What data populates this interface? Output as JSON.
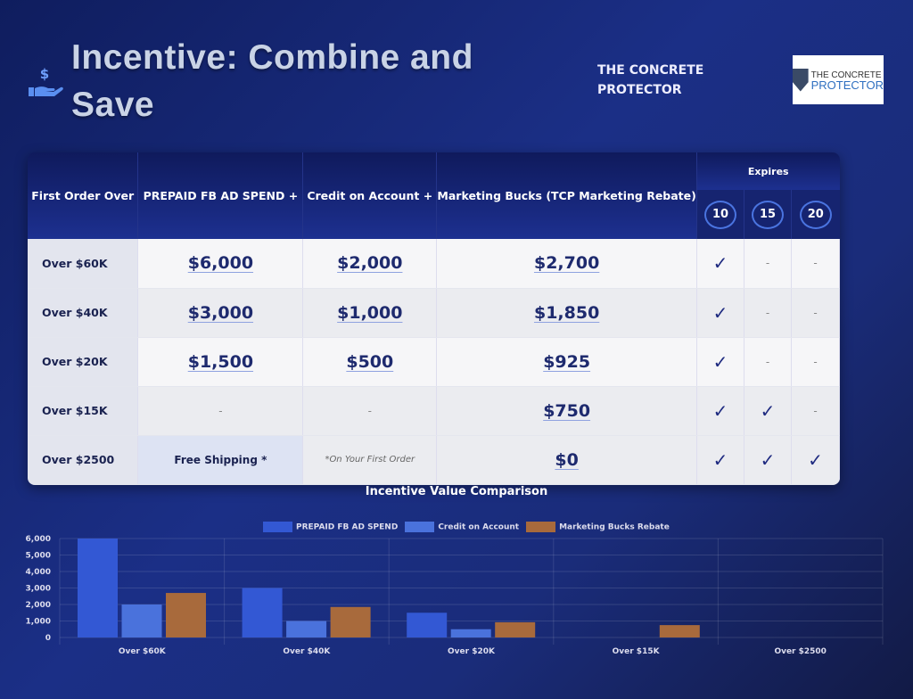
{
  "header": {
    "title_part1": "Incentive: Combine and",
    "title_part2": "Save",
    "brand": "THE CONCRETE PROTECTOR",
    "logo_line1": "THE CONCRETE",
    "logo_line2": "PROTECTOR",
    "logo_mark": "CP"
  },
  "table": {
    "columns": [
      "First Order Over",
      "PREPAID FB AD SPEND +",
      "Credit on Account +",
      "Marketing Bucks (TCP Marketing Rebate)"
    ],
    "expires_label": "Expires",
    "expires": [
      "10",
      "15",
      "20"
    ],
    "rows": [
      {
        "tier": "Over $60K",
        "fb": "$6,000",
        "credit": "$2,000",
        "bucks": "$2,700",
        "e": [
          "✓",
          "-",
          "-"
        ]
      },
      {
        "tier": "Over $40K",
        "fb": "$3,000",
        "credit": "$1,000",
        "bucks": "$1,850",
        "e": [
          "✓",
          "-",
          "-"
        ]
      },
      {
        "tier": "Over $20K",
        "fb": "$1,500",
        "credit": "$500",
        "bucks": "$925",
        "e": [
          "✓",
          "-",
          "-"
        ]
      },
      {
        "tier": "Over $15K",
        "fb": "-",
        "credit": "-",
        "bucks": "$750",
        "e": [
          "✓",
          "✓",
          "-"
        ]
      },
      {
        "tier": "Over $2500",
        "fb": "Free Shipping *",
        "credit": "*On Your First Order",
        "bucks": "$0",
        "e": [
          "✓",
          "✓",
          "✓"
        ]
      }
    ]
  },
  "chart_data": {
    "type": "bar",
    "title": "Incentive Value Comparison",
    "categories": [
      "Over $60K",
      "Over $40K",
      "Over $20K",
      "Over $15K",
      "Over $2500"
    ],
    "series": [
      {
        "name": "PREPAID FB AD SPEND",
        "values": [
          6000,
          3000,
          1500,
          0,
          0
        ],
        "color": "#3358d4"
      },
      {
        "name": "Credit on Account",
        "values": [
          2000,
          1000,
          500,
          0,
          0
        ],
        "color": "#4a72dc"
      },
      {
        "name": "Marketing Bucks Rebate",
        "values": [
          2700,
          1850,
          925,
          750,
          0
        ],
        "color": "#a86a3c"
      }
    ],
    "yticks": [
      "0",
      "1,000",
      "2,000",
      "3,000",
      "4,000",
      "5,000",
      "6,000"
    ],
    "ylim": [
      0,
      6000
    ],
    "legend": "top",
    "grid": true
  }
}
